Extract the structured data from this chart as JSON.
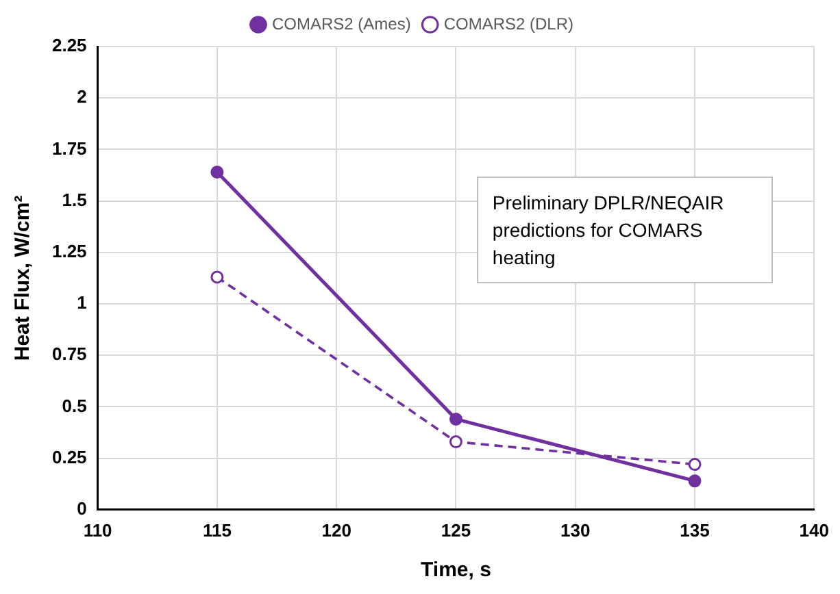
{
  "chart_data": {
    "type": "line",
    "xlabel": "Time, s",
    "ylabel": "Heat Flux, W/cm²",
    "x": [
      115,
      125,
      135
    ],
    "series": [
      {
        "name": "COMARS2 (Ames)",
        "color": "#7030a0",
        "values": [
          1.64,
          0.44,
          0.14
        ],
        "line_style": "solid"
      },
      {
        "name": "COMARS2 (DLR)",
        "color": "#7030a0",
        "values": [
          1.13,
          0.33,
          0.22
        ],
        "line_style": "dashed"
      }
    ],
    "xlim": [
      110,
      140
    ],
    "xticks": [
      110,
      115,
      120,
      125,
      130,
      135,
      140
    ],
    "ylim": [
      0,
      2.25
    ],
    "yticks": [
      0,
      0.25,
      0.5,
      0.75,
      1,
      1.25,
      1.5,
      1.75,
      2,
      2.25
    ],
    "grid": true,
    "legend": "top",
    "marker": "circle",
    "annotations": [
      "Preliminary DPLR/NEQAIR predictions for COMARS heating"
    ]
  }
}
